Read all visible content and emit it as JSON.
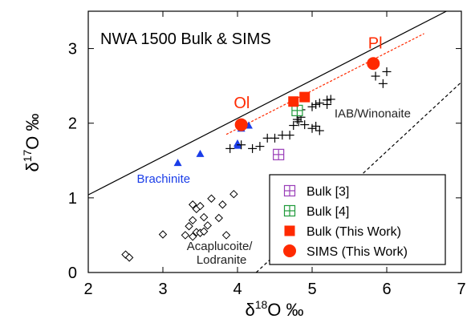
{
  "chart_data": {
    "type": "scatter",
    "title": "NWA 1500 Bulk & SIMS",
    "xlabel": {
      "pre": "δ",
      "sup": "18",
      "post": "O ‰"
    },
    "ylabel": {
      "pre": "δ",
      "sup": "17",
      "post": "O ‰"
    },
    "xlim": [
      2,
      7
    ],
    "ylim": [
      0,
      3.5
    ],
    "xticks": [
      "2",
      "3",
      "4",
      "5",
      "6",
      "7"
    ],
    "yticks": [
      "0",
      "1",
      "2",
      "3"
    ],
    "grid": false,
    "legend_position": "bottom-right",
    "legend": [
      {
        "label": "Bulk [3]",
        "marker": "square-plus",
        "color": "#9a3db8"
      },
      {
        "label": "Bulk [4]",
        "marker": "square-plus",
        "color": "#1f9a3a"
      },
      {
        "label": "Bulk (This Work)",
        "marker": "square",
        "color": "#ff2a00"
      },
      {
        "label": "SIMS (This Work)",
        "marker": "circle",
        "color": "#ff2a00"
      }
    ],
    "lines": [
      {
        "type": "solid",
        "color": "#000000",
        "points": [
          [
            2,
            1.04
          ],
          [
            6.8,
            3.5
          ]
        ]
      },
      {
        "type": "dashed",
        "color": "#000000",
        "points": [
          [
            4.25,
            0
          ],
          [
            7,
            2.55
          ]
        ]
      },
      {
        "type": "dotted",
        "color": "#ff2a00",
        "points": [
          [
            3.85,
            1.85
          ],
          [
            6.5,
            3.2
          ]
        ]
      }
    ],
    "annotations": [
      {
        "text": "Brachinite",
        "x": 2.65,
        "y": 1.2,
        "color": "#1a3de8"
      },
      {
        "text": "IAB/Winonaite",
        "x": 5.3,
        "y": 2.08,
        "color": "#222222"
      },
      {
        "text": "Acaplucoite/",
        "x": 3.32,
        "y": 0.3,
        "color": "#222222"
      },
      {
        "text": "Lodranite",
        "x": 3.45,
        "y": 0.12,
        "color": "#222222"
      },
      {
        "text": "Ol",
        "x": 3.95,
        "y": 2.2,
        "color": "#ff2a00"
      },
      {
        "text": "Pl",
        "x": 5.75,
        "y": 3.0,
        "color": "#ff2a00"
      }
    ],
    "series": [
      {
        "name": "Brachinite",
        "marker": "triangle",
        "color": "#1a3de8",
        "points": [
          [
            3.2,
            1.47
          ],
          [
            3.5,
            1.59
          ],
          [
            4.0,
            1.73
          ],
          [
            4.0,
            1.7
          ],
          [
            4.05,
            1.93
          ],
          [
            4.15,
            1.97
          ]
        ]
      },
      {
        "name": "IAB/Winonaite",
        "marker": "plus",
        "color": "#000000",
        "points": [
          [
            3.9,
            1.66
          ],
          [
            4.05,
            1.71
          ],
          [
            4.2,
            1.66
          ],
          [
            4.3,
            1.69
          ],
          [
            4.4,
            1.8
          ],
          [
            4.5,
            1.8
          ],
          [
            4.6,
            1.84
          ],
          [
            4.7,
            1.84
          ],
          [
            4.75,
            1.97
          ],
          [
            4.8,
            2.05
          ],
          [
            4.82,
            2.02
          ],
          [
            4.85,
            2.08
          ],
          [
            4.9,
            1.98
          ],
          [
            5.0,
            1.93
          ],
          [
            5.05,
            1.96
          ],
          [
            5.1,
            1.9
          ],
          [
            4.85,
            2.18
          ],
          [
            5.0,
            2.22
          ],
          [
            5.1,
            2.27
          ],
          [
            5.2,
            2.31
          ],
          [
            5.25,
            2.32
          ],
          [
            5.05,
            2.25
          ],
          [
            5.2,
            2.25
          ],
          [
            5.85,
            2.63
          ],
          [
            5.95,
            2.53
          ],
          [
            6.0,
            2.69
          ]
        ]
      },
      {
        "name": "Acapulcoite/Lodranite",
        "marker": "diamond",
        "color": "#000000",
        "points": [
          [
            2.5,
            0.24
          ],
          [
            2.55,
            0.2
          ],
          [
            3.0,
            0.51
          ],
          [
            3.3,
            0.5
          ],
          [
            3.4,
            0.48
          ],
          [
            3.45,
            0.54
          ],
          [
            3.5,
            0.53
          ],
          [
            3.55,
            0.55
          ],
          [
            3.35,
            0.62
          ],
          [
            3.4,
            0.7
          ],
          [
            3.45,
            0.85
          ],
          [
            3.5,
            0.89
          ],
          [
            3.55,
            0.74
          ],
          [
            3.4,
            0.91
          ],
          [
            3.6,
            0.63
          ],
          [
            3.65,
            0.99
          ],
          [
            3.75,
            0.73
          ],
          [
            3.8,
            0.91
          ],
          [
            3.85,
            0.5
          ],
          [
            3.95,
            1.05
          ]
        ]
      },
      {
        "name": "Bulk [3]",
        "marker": "square-plus",
        "color": "#9a3db8",
        "points": [
          [
            4.55,
            1.58
          ]
        ]
      },
      {
        "name": "Bulk [4]",
        "marker": "square-plus",
        "color": "#1f9a3a",
        "points": [
          [
            4.8,
            2.17
          ]
        ]
      },
      {
        "name": "Bulk (This Work)",
        "marker": "square",
        "color": "#ff2a00",
        "points": [
          [
            4.75,
            2.29
          ],
          [
            4.9,
            2.35
          ]
        ]
      },
      {
        "name": "SIMS (This Work)",
        "marker": "circle",
        "color": "#ff2a00",
        "points": [
          [
            4.05,
            1.98
          ],
          [
            5.82,
            2.8
          ]
        ]
      }
    ]
  }
}
